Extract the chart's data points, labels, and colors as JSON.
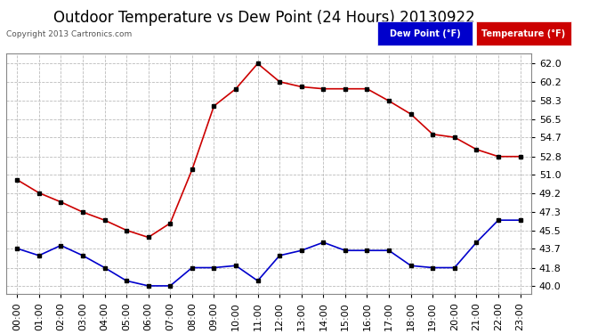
{
  "title": "Outdoor Temperature vs Dew Point (24 Hours) 20130922",
  "copyright": "Copyright 2013 Cartronics.com",
  "hours": [
    "00:00",
    "01:00",
    "02:00",
    "03:00",
    "04:00",
    "05:00",
    "06:00",
    "07:00",
    "08:00",
    "09:00",
    "10:00",
    "11:00",
    "12:00",
    "13:00",
    "14:00",
    "15:00",
    "16:00",
    "17:00",
    "18:00",
    "19:00",
    "20:00",
    "21:00",
    "22:00",
    "23:00"
  ],
  "temperature": [
    50.5,
    49.2,
    48.3,
    47.3,
    46.5,
    45.5,
    44.8,
    46.2,
    51.5,
    57.8,
    59.5,
    62.0,
    60.2,
    59.7,
    59.5,
    59.5,
    59.5,
    58.3,
    57.0,
    55.0,
    54.7,
    53.5,
    52.8,
    52.8
  ],
  "dew_point": [
    43.7,
    43.0,
    44.0,
    43.0,
    41.8,
    40.5,
    40.0,
    40.0,
    41.8,
    41.8,
    42.0,
    40.5,
    43.0,
    43.5,
    44.3,
    43.5,
    43.5,
    43.5,
    42.0,
    41.8,
    41.8,
    44.3,
    46.5,
    46.5
  ],
  "temp_color": "#cc0000",
  "dew_color": "#0000cc",
  "marker_color": "#000000",
  "ylim_min": 39.2,
  "ylim_max": 63.0,
  "yticks": [
    40.0,
    41.8,
    43.7,
    45.5,
    47.3,
    49.2,
    51.0,
    52.8,
    54.7,
    56.5,
    58.3,
    60.2,
    62.0
  ],
  "bg_color": "#ffffff",
  "plot_bg_color": "#ffffff",
  "grid_color": "#bbbbbb",
  "title_fontsize": 12,
  "tick_fontsize": 8,
  "legend_bg_dew": "#0000cc",
  "legend_bg_temp": "#cc0000",
  "legend_text_dew": "Dew Point (°F)",
  "legend_text_temp": "Temperature (°F)"
}
